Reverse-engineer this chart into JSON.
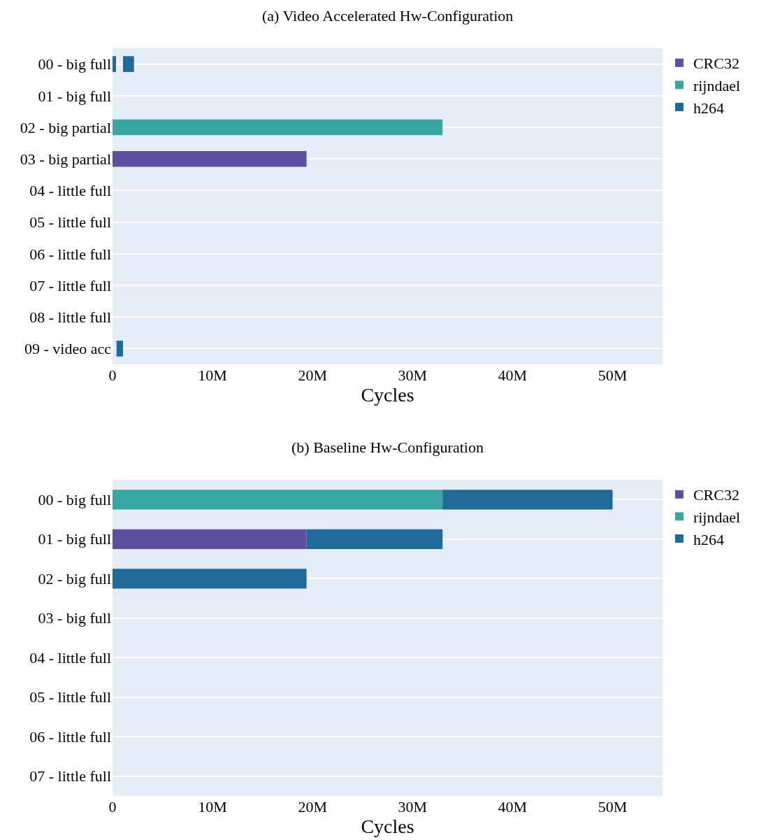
{
  "chart_data": [
    {
      "type": "bar",
      "orientation": "horizontal",
      "title": "(a) Video Accelerated Hw-Configuration",
      "xlabel": "Cycles",
      "categories": [
        "00 - big full",
        "01 - big full",
        "02 - big partial",
        "03 - big partial",
        "04 - little full",
        "05 - little full",
        "06 - little full",
        "07 - little full",
        "08 - little full",
        "09 - video acc"
      ],
      "series": [
        {
          "name": "CRC32",
          "color": "#5e4fa2",
          "base": [
            null,
            null,
            null,
            0,
            null,
            null,
            null,
            null,
            null,
            null
          ],
          "values": [
            null,
            null,
            null,
            19400000,
            null,
            null,
            null,
            null,
            null,
            null
          ]
        },
        {
          "name": "rijndael",
          "color": "#3aa6a4",
          "base": [
            null,
            null,
            0,
            null,
            null,
            null,
            null,
            null,
            null,
            null
          ],
          "values": [
            null,
            null,
            33000000,
            null,
            null,
            null,
            null,
            null,
            null,
            null
          ]
        },
        {
          "name": "h264",
          "color": "#206a9a",
          "base": [
            0,
            null,
            null,
            null,
            null,
            null,
            null,
            null,
            null,
            400000
          ],
          "values": [
            350000,
            null,
            null,
            null,
            null,
            null,
            null,
            null,
            null,
            650000
          ]
        },
        {
          "color": "#206a9a",
          "base": [
            1050000,
            null,
            null,
            null,
            null,
            null,
            null,
            null,
            null,
            null
          ],
          "values": [
            1100000,
            null,
            null,
            null,
            null,
            null,
            null,
            null,
            null,
            null
          ]
        }
      ],
      "xlim": [
        0,
        55000000
      ],
      "xticks": [
        0,
        {
          "value": 10000000,
          "label": "10M"
        },
        {
          "value": 20000000,
          "label": "20M"
        },
        {
          "value": 30000000,
          "label": "30M"
        },
        {
          "value": 40000000,
          "label": "40M"
        },
        {
          "value": 50000000,
          "label": "50M"
        }
      ],
      "grid": "y",
      "legend": "top right"
    },
    {
      "type": "bar",
      "orientation": "horizontal",
      "title": "(b) Baseline Hw-Configuration",
      "xlabel": "Cycles",
      "categories": [
        "00 - big full",
        "01 - big full",
        "02 - big full",
        "03 - big full",
        "04 - little full",
        "05 - little full",
        "06 - little full",
        "07 - little full"
      ],
      "series": [
        {
          "name": "CRC32",
          "color": "#5e4fa2",
          "base": [
            null,
            0,
            null,
            null,
            null,
            null,
            null,
            null
          ],
          "values": [
            null,
            19400000,
            null,
            null,
            null,
            null,
            null,
            null
          ]
        },
        {
          "name": "rijndael",
          "color": "#3aa6a4",
          "base": [
            0,
            null,
            null,
            null,
            null,
            null,
            null,
            null
          ],
          "values": [
            33000000,
            null,
            null,
            null,
            null,
            null,
            null,
            null
          ]
        },
        {
          "name": "h264",
          "color": "#206a9a",
          "base": [
            33000000,
            19400000,
            0,
            null,
            null,
            null,
            null,
            null
          ],
          "values": [
            17000000,
            13600000,
            19400000,
            null,
            null,
            null,
            null,
            null
          ]
        }
      ],
      "xlim": [
        0,
        55000000
      ],
      "xticks": [
        0,
        {
          "value": 10000000,
          "label": "10M"
        },
        {
          "value": 20000000,
          "label": "20M"
        },
        {
          "value": 30000000,
          "label": "30M"
        },
        {
          "value": 40000000,
          "label": "40M"
        },
        {
          "value": 50000000,
          "label": "50M"
        }
      ],
      "grid": "y",
      "legend": "top right"
    }
  ]
}
